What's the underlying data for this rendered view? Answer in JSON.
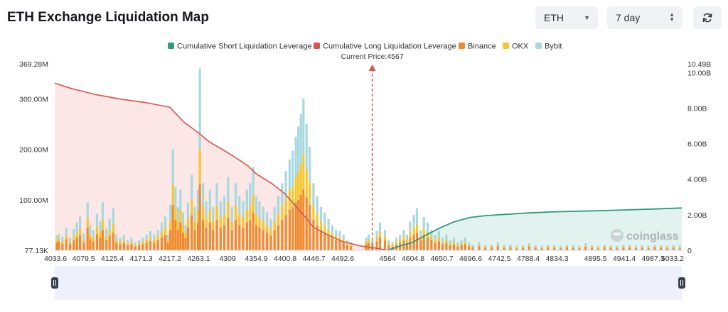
{
  "title": "ETH Exchange Liquidation Map",
  "controls": {
    "asset_value": "ETH",
    "period_value": "7 day"
  },
  "colors": {
    "short_line": "#2a9d7e",
    "short_fill": "#dff1ec",
    "long_line": "#d9534f",
    "long_fill": "#fbe4e2",
    "binance": "#f08a2c",
    "okx": "#f7c62f",
    "bybit": "#a7d8e0",
    "current_price": "#d9534f"
  },
  "watermark": "coinglass",
  "chart_data": {
    "type": "bar",
    "current_price": 4567,
    "current_price_label": "Current Price:4567",
    "x_range": [
      4033.6,
      5033.2
    ],
    "x_ticks": [
      "4033.6",
      "4079.5",
      "4125.4",
      "4171.3",
      "4217.2",
      "4263.1",
      "4309",
      "4354.9",
      "4400.8",
      "4446.7",
      "4492.6",
      "4564",
      "4604.8",
      "4650.7",
      "4696.6",
      "4742.5",
      "4788.4",
      "4834.3",
      "4895.5",
      "4941.4",
      "4987.3",
      "5033.2"
    ],
    "y_left": {
      "range": [
        0,
        369.28
      ],
      "unit": "M",
      "tick_values": [
        0,
        100,
        200,
        300,
        369.28
      ],
      "tick_labels": [
        "77.13K",
        "100.00M",
        "200.00M",
        "300.00M",
        "369.28M"
      ]
    },
    "y_right": {
      "range": [
        0,
        10.49
      ],
      "unit": "B",
      "tick_values": [
        0,
        2,
        4,
        6,
        8,
        10,
        10.49
      ],
      "tick_labels": [
        "0",
        "2.00B",
        "4.00B",
        "6.00B",
        "8.00B",
        "10.00B",
        "10.49B"
      ]
    },
    "legend": {
      "position": "top-center",
      "entries": [
        "Cumulative Short Liquidation Leverage",
        "Cumulative Long Liquidation Leverage",
        "Binance",
        "OKX",
        "Bybit"
      ]
    },
    "long_cumulative": {
      "name": "Cumulative Long Liquidation Leverage",
      "x": [
        4033.6,
        4060,
        4100,
        4140,
        4180,
        4217,
        4240,
        4263,
        4280,
        4309,
        4340,
        4355,
        4380,
        4400,
        4415,
        4430,
        4446,
        4470,
        4492,
        4520,
        4550,
        4564
      ],
      "y": [
        9.4,
        9.1,
        8.75,
        8.5,
        8.3,
        8.05,
        7.2,
        6.6,
        6.1,
        5.5,
        4.8,
        4.3,
        3.75,
        3.2,
        2.6,
        2.0,
        1.3,
        0.85,
        0.5,
        0.25,
        0.1,
        0
      ]
    },
    "short_cumulative": {
      "name": "Cumulative Short Liquidation Leverage",
      "x": [
        4564,
        4580,
        4604,
        4625,
        4650,
        4670,
        4696,
        4720,
        4742,
        4788,
        4834,
        4895,
        4941,
        4987,
        5033.2
      ],
      "y": [
        0,
        0.2,
        0.45,
        0.85,
        1.3,
        1.6,
        1.85,
        1.95,
        2.0,
        2.1,
        2.17,
        2.22,
        2.27,
        2.32,
        2.38
      ]
    },
    "bar_peaks": {
      "x": [
        4037,
        4040,
        4046,
        4052,
        4058,
        4064,
        4069,
        4074,
        4080,
        4086,
        4090,
        4095,
        4101,
        4106,
        4110,
        4116,
        4121,
        4127,
        4132,
        4138,
        4144,
        4150,
        4156,
        4162,
        4168,
        4174,
        4180,
        4186,
        4192,
        4198,
        4204,
        4210,
        4214,
        4218,
        4222,
        4226,
        4230,
        4234,
        4238,
        4242,
        4246,
        4252,
        4257,
        4262,
        4265,
        4270,
        4275,
        4281,
        4286,
        4292,
        4298,
        4304,
        4310,
        4316,
        4322,
        4328,
        4334,
        4340,
        4345,
        4350,
        4355,
        4360,
        4366,
        4372,
        4378,
        4384,
        4390,
        4396,
        4402,
        4408,
        4413,
        4418,
        4422,
        4426,
        4430,
        4435,
        4440,
        4446,
        4452,
        4458,
        4464,
        4470,
        4476,
        4482,
        4488,
        4494,
        4500,
        4506,
        4530,
        4534,
        4540,
        4547,
        4552,
        4560,
        4566,
        4572,
        4578,
        4584,
        4590,
        4595,
        4600,
        4606,
        4611,
        4617,
        4622,
        4628,
        4634,
        4640,
        4646,
        4652,
        4658,
        4664,
        4670,
        4676,
        4682,
        4688,
        4694,
        4700,
        4710,
        4720,
        4730,
        4740,
        4750,
        4760,
        4770,
        4780,
        4790,
        4800,
        4810,
        4820,
        4830,
        4840,
        4850,
        4860,
        4870,
        4880,
        4890,
        4900,
        4910,
        4920,
        4930,
        4940,
        4950,
        4960,
        4970,
        4980,
        4990,
        5000,
        5010,
        5020,
        5030
      ],
      "binance": [
        15,
        18,
        13,
        22,
        12,
        20,
        25,
        30,
        15,
        45,
        22,
        18,
        32,
        25,
        40,
        20,
        28,
        35,
        15,
        12,
        14,
        10,
        12,
        8,
        10,
        12,
        15,
        18,
        15,
        20,
        25,
        30,
        15,
        40,
        90,
        60,
        40,
        55,
        35,
        25,
        45,
        70,
        40,
        55,
        130,
        60,
        45,
        55,
        40,
        60,
        45,
        50,
        65,
        40,
        60,
        50,
        45,
        55,
        60,
        75,
        50,
        45,
        40,
        35,
        30,
        40,
        50,
        60,
        70,
        80,
        85,
        95,
        100,
        110,
        120,
        105,
        90,
        60,
        50,
        40,
        35,
        30,
        25,
        20,
        18,
        15,
        10,
        8,
        12,
        15,
        10,
        18,
        25,
        20,
        10,
        8,
        12,
        15,
        20,
        15,
        25,
        30,
        35,
        20,
        30,
        25,
        20,
        15,
        18,
        12,
        15,
        10,
        12,
        8,
        10,
        12,
        8,
        6,
        8,
        5,
        6,
        8,
        5,
        6,
        4,
        5,
        7,
        5,
        4,
        6,
        5,
        4,
        6,
        5,
        4,
        7,
        5,
        4,
        6,
        5,
        4,
        5,
        6,
        4,
        5,
        4,
        6,
        5,
        4,
        5,
        4
      ],
      "okx": [
        5,
        6,
        4,
        8,
        5,
        7,
        10,
        12,
        6,
        20,
        10,
        8,
        15,
        12,
        20,
        8,
        12,
        18,
        6,
        5,
        6,
        4,
        5,
        3,
        4,
        5,
        6,
        8,
        6,
        8,
        12,
        15,
        6,
        20,
        40,
        25,
        18,
        25,
        15,
        10,
        20,
        30,
        18,
        25,
        70,
        28,
        20,
        25,
        18,
        28,
        20,
        22,
        30,
        18,
        28,
        22,
        20,
        25,
        28,
        35,
        22,
        20,
        18,
        15,
        12,
        18,
        22,
        28,
        32,
        40,
        42,
        50,
        55,
        60,
        70,
        55,
        45,
        28,
        22,
        18,
        15,
        12,
        10,
        8,
        8,
        6,
        4,
        3,
        5,
        6,
        4,
        8,
        12,
        8,
        4,
        3,
        5,
        6,
        8,
        6,
        12,
        15,
        18,
        8,
        14,
        12,
        8,
        6,
        8,
        5,
        6,
        4,
        5,
        3,
        4,
        5,
        3,
        2,
        3,
        2,
        2,
        3,
        2,
        2,
        2,
        2,
        3,
        2,
        2,
        2,
        2,
        2,
        2,
        2,
        2,
        3,
        2,
        2,
        2,
        2,
        2,
        2,
        2,
        2,
        2,
        2,
        2,
        2,
        2,
        2,
        2
      ],
      "bybit": [
        10,
        8,
        10,
        15,
        8,
        15,
        20,
        25,
        12,
        30,
        18,
        14,
        25,
        20,
        35,
        15,
        22,
        30,
        10,
        8,
        10,
        6,
        8,
        5,
        6,
        8,
        10,
        12,
        10,
        12,
        18,
        22,
        10,
        30,
        70,
        40,
        28,
        40,
        25,
        15,
        30,
        50,
        28,
        40,
        160,
        45,
        32,
        40,
        28,
        45,
        32,
        35,
        50,
        28,
        45,
        35,
        32,
        40,
        45,
        55,
        35,
        32,
        28,
        25,
        20,
        28,
        35,
        45,
        55,
        60,
        70,
        80,
        90,
        100,
        110,
        90,
        70,
        45,
        35,
        28,
        25,
        20,
        15,
        12,
        12,
        10,
        6,
        5,
        8,
        10,
        6,
        12,
        18,
        12,
        6,
        5,
        8,
        10,
        12,
        10,
        20,
        25,
        30,
        12,
        22,
        18,
        12,
        10,
        12,
        8,
        10,
        6,
        8,
        5,
        6,
        8,
        5,
        3,
        5,
        3,
        3,
        5,
        3,
        3,
        3,
        3,
        4,
        3,
        3,
        3,
        3,
        3,
        3,
        3,
        3,
        4,
        3,
        3,
        3,
        3,
        3,
        3,
        3,
        3,
        3,
        3,
        3,
        3,
        3,
        3,
        3
      ]
    }
  }
}
